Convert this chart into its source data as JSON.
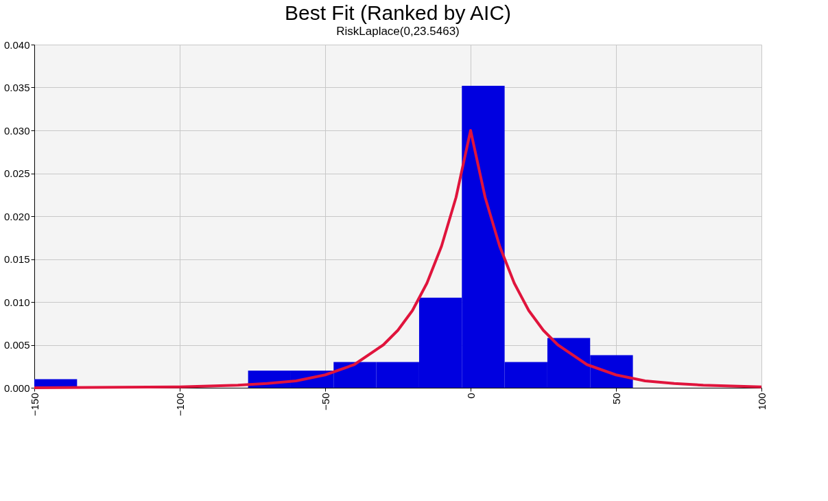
{
  "chart_data": {
    "type": "histogram",
    "title": "Best Fit (Ranked by AIC)",
    "subtitle": "RiskLaplace(0,23.5463)",
    "bins": [
      -150,
      -135.3,
      -120.6,
      -105.9,
      -91.2,
      -76.5,
      -61.8,
      -47.1,
      -32.4,
      -17.7,
      -3.0,
      11.7,
      26.4,
      41.1,
      55.8
    ],
    "values": [
      0.001,
      0,
      0,
      0,
      0,
      0.002,
      0.002,
      0.003,
      0.003,
      0.0105,
      0.0352,
      0.003,
      0.0058,
      0.0038
    ],
    "color": "#0000e0",
    "series": [
      {
        "type": "line",
        "color": "#e0143c",
        "x": [
          -150,
          -100,
          -80,
          -70,
          -60,
          -50,
          -40,
          -30,
          -25,
          -20,
          -15,
          -10,
          -5,
          0,
          5,
          10,
          15,
          20,
          25,
          30,
          40,
          50,
          60,
          70,
          80,
          100
        ],
        "values": [
          0.0,
          0.0001,
          0.0003,
          0.0005,
          0.0008,
          0.0015,
          0.0027,
          0.005,
          0.0067,
          0.009,
          0.0122,
          0.0165,
          0.0222,
          0.03,
          0.0222,
          0.0165,
          0.0122,
          0.009,
          0.0067,
          0.005,
          0.0027,
          0.0015,
          0.0008,
          0.0005,
          0.0003,
          0.0001
        ]
      }
    ],
    "xlim": [
      -150,
      100
    ],
    "xticks": [
      -150,
      -100,
      -50,
      0,
      50,
      100
    ],
    "ylim": [
      0,
      0.04
    ],
    "yticks": [
      {
        "value": 0,
        "label": "0.000"
      },
      {
        "value": 0.005,
        "label": "0.005"
      },
      {
        "value": 0.01,
        "label": "0.010"
      },
      {
        "value": 0.015,
        "label": "0.015"
      },
      {
        "value": 0.02,
        "label": "0.020"
      },
      {
        "value": 0.025,
        "label": "0.025"
      },
      {
        "value": 0.03,
        "label": "0.030"
      },
      {
        "value": 0.035,
        "label": "0.035"
      },
      {
        "value": 0.04,
        "label": "0.040"
      }
    ],
    "grid": true
  }
}
